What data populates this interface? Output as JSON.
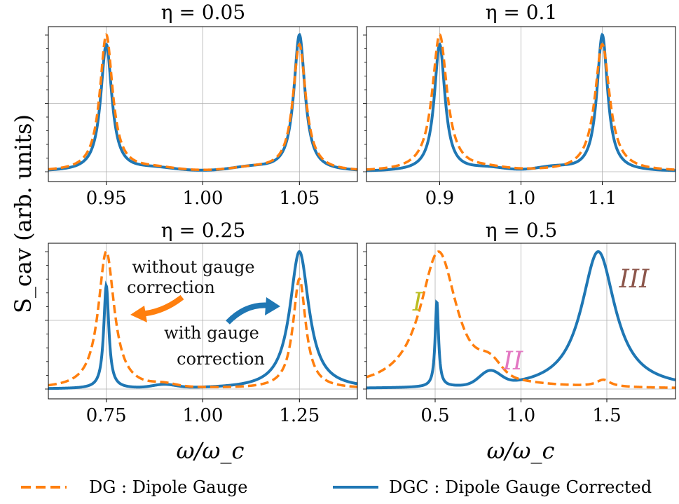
{
  "colors": {
    "dg": "#ff7f0e",
    "dgc": "#1f77b4",
    "grid": "#b0b0b0",
    "label_I": "#bcbd22",
    "label_II": "#e377c2",
    "label_III": "#8c564b"
  },
  "ylabel": "S_cav (arb. units)",
  "xlabel": "ω/ω_c",
  "legend": [
    {
      "key": "dg",
      "label": "DG :  Dipole Gauge"
    },
    {
      "key": "dgc",
      "label": "DGC :  Dipole Gauge Corrected"
    }
  ],
  "annotations": {
    "without": [
      "without gauge",
      "correction"
    ],
    "with": [
      "with gauge",
      "correction"
    ],
    "I": "I",
    "II": "II",
    "III": "III"
  },
  "chart_data": [
    {
      "type": "line",
      "title": "η = 0.05",
      "xlim": [
        0.92,
        1.08
      ],
      "xticks": [
        0.95,
        1.0,
        1.05
      ],
      "xtick_labels": [
        "0.95",
        "1.00",
        "1.05"
      ],
      "grid": true,
      "series": [
        {
          "name": "DG",
          "peaks": [
            {
              "x": 0.95,
              "h": 1.0,
              "w": 0.004
            },
            {
              "x": 1.05,
              "h": 0.93,
              "w": 0.004
            }
          ],
          "bumps": [
            {
              "x": 0.975,
              "h": 0.02,
              "w": 0.01
            },
            {
              "x": 1.025,
              "h": 0.02,
              "w": 0.01
            }
          ]
        },
        {
          "name": "DGC",
          "peaks": [
            {
              "x": 0.95,
              "h": 0.93,
              "w": 0.0035
            },
            {
              "x": 1.05,
              "h": 1.0,
              "w": 0.0035
            }
          ],
          "bumps": [
            {
              "x": 0.975,
              "h": 0.02,
              "w": 0.01
            },
            {
              "x": 1.025,
              "h": 0.025,
              "w": 0.01
            }
          ]
        }
      ]
    },
    {
      "type": "line",
      "title": "η = 0.1",
      "xlim": [
        0.81,
        1.19
      ],
      "xticks": [
        0.9,
        1.0,
        1.1
      ],
      "xtick_labels": [
        "0.9",
        "1.0",
        "1.1"
      ],
      "grid": true,
      "series": [
        {
          "name": "DG",
          "peaks": [
            {
              "x": 0.9,
              "h": 1.0,
              "w": 0.011
            },
            {
              "x": 1.1,
              "h": 0.93,
              "w": 0.011
            }
          ],
          "bumps": [
            {
              "x": 0.96,
              "h": 0.015,
              "w": 0.02
            }
          ]
        },
        {
          "name": "DGC",
          "peaks": [
            {
              "x": 0.9,
              "h": 0.93,
              "w": 0.008
            },
            {
              "x": 1.1,
              "h": 1.0,
              "w": 0.008
            }
          ],
          "bumps": [
            {
              "x": 0.96,
              "h": 0.02,
              "w": 0.02
            },
            {
              "x": 1.04,
              "h": 0.025,
              "w": 0.02
            }
          ]
        }
      ]
    },
    {
      "type": "line",
      "title": "η = 0.25",
      "xlim": [
        0.6,
        1.4
      ],
      "xticks": [
        0.75,
        1.0,
        1.25
      ],
      "xtick_labels": [
        "0.75",
        "1.00",
        "1.25"
      ],
      "grid": true,
      "series": [
        {
          "name": "DG",
          "peaks": [
            {
              "x": 0.75,
              "h": 1.0,
              "w": 0.025
            },
            {
              "x": 1.25,
              "h": 0.8,
              "w": 0.02
            }
          ],
          "bumps": [
            {
              "x": 0.9,
              "h": 0.02,
              "w": 0.03
            }
          ]
        },
        {
          "name": "DGC",
          "peaks": [
            {
              "x": 0.75,
              "h": 0.75,
              "w": 0.008
            },
            {
              "x": 1.25,
              "h": 1.0,
              "w": 0.03
            }
          ],
          "bumps": [
            {
              "x": 0.9,
              "h": 0.025,
              "w": 0.03
            }
          ]
        }
      ]
    },
    {
      "type": "line",
      "title": "η = 0.5",
      "xlim": [
        0.1,
        1.9
      ],
      "xticks": [
        0.5,
        1.0,
        1.5
      ],
      "xtick_labels": [
        "0.5",
        "1.0",
        "1.5"
      ],
      "grid": true,
      "series": [
        {
          "name": "DG",
          "peaks": [
            {
              "x": 0.52,
              "h": 1.0,
              "w": 0.13
            },
            {
              "x": 1.48,
              "h": 0.05,
              "w": 0.05
            }
          ],
          "bumps": [
            {
              "x": 0.82,
              "h": 0.1,
              "w": 0.06
            }
          ]
        },
        {
          "name": "DGC",
          "peaks": [
            {
              "x": 0.51,
              "h": 0.62,
              "w": 0.012
            },
            {
              "x": 1.45,
              "h": 1.0,
              "w": 0.12
            }
          ],
          "bumps": [
            {
              "x": 0.82,
              "h": 0.1,
              "w": 0.06
            }
          ]
        }
      ]
    }
  ]
}
